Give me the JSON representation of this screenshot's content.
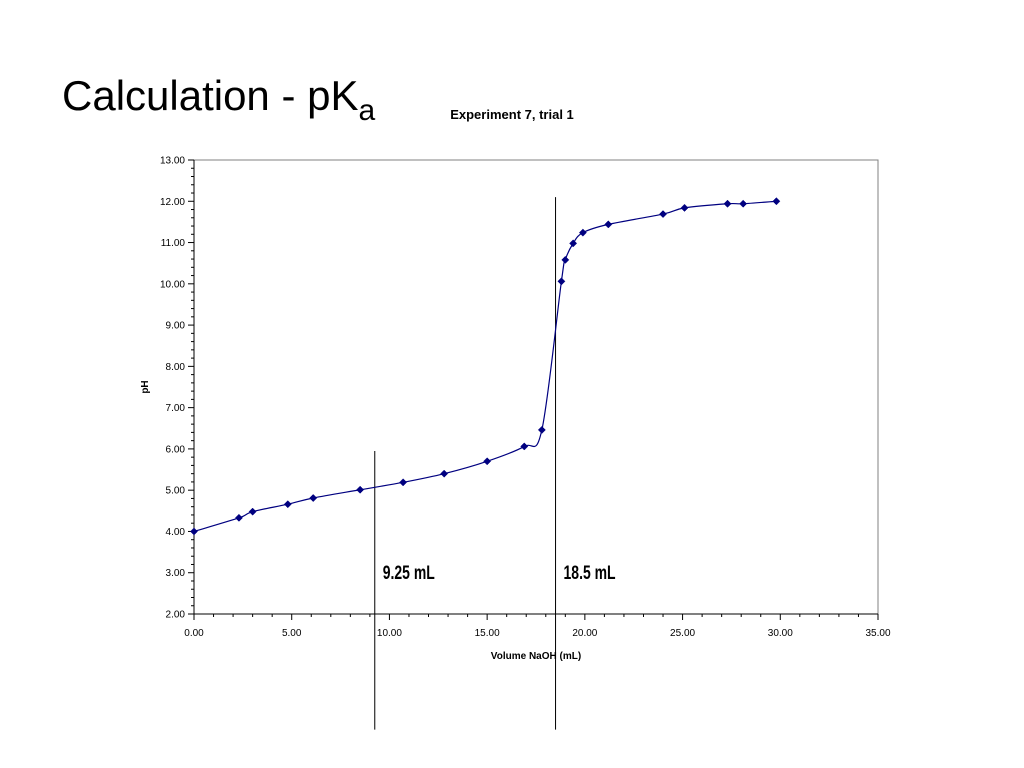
{
  "slide": {
    "title_main": "Calculation - pK",
    "title_sub": "a"
  },
  "chart_data": {
    "type": "line",
    "title": "Experiment 7, trial 1",
    "xlabel": "Volume NaOH (mL)",
    "ylabel": "pH",
    "xlim": [
      0,
      35
    ],
    "ylim": [
      2,
      13
    ],
    "xticks": [
      "0.00",
      "5.00",
      "10.00",
      "15.00",
      "20.00",
      "25.00",
      "30.00",
      "35.00"
    ],
    "yticks": [
      "2.00",
      "3.00",
      "4.00",
      "5.00",
      "6.00",
      "7.00",
      "8.00",
      "9.00",
      "10.00",
      "11.00",
      "12.00",
      "13.00"
    ],
    "grid": false,
    "legend": "none",
    "series": [
      {
        "color": "#000080",
        "marker": "diamond",
        "x": [
          0.0,
          2.3,
          3.0,
          4.8,
          6.1,
          8.5,
          10.7,
          12.8,
          15.0,
          16.9,
          17.8,
          18.8,
          19.0,
          19.4,
          19.9,
          21.2,
          24.0,
          25.1,
          27.3,
          28.1,
          29.8
        ],
        "y": [
          4.0,
          4.33,
          4.48,
          4.66,
          4.81,
          5.01,
          5.19,
          5.4,
          5.7,
          6.06,
          6.46,
          10.06,
          10.58,
          10.98,
          11.24,
          11.44,
          11.69,
          11.84,
          11.94,
          11.94,
          12.0
        ]
      }
    ],
    "annotations": [
      {
        "label": "9.25 mL",
        "x": 9.25
      },
      {
        "label": "18.5 mL",
        "x": 18.5
      }
    ]
  }
}
